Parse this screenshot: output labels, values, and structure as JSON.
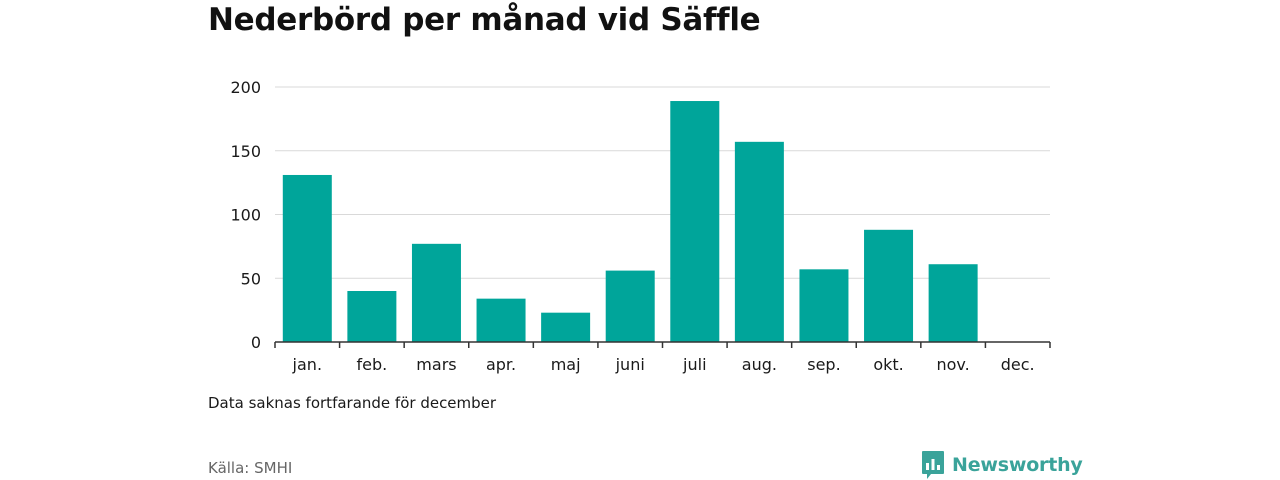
{
  "title": "Nederbörd per månad vid Säffle",
  "note": "Data saknas fortfarande för december",
  "source": "Källa: SMHI",
  "brand": {
    "name": "Newsworthy",
    "icon": "bar-chart-speech-icon",
    "color": "#3aa39a"
  },
  "chart_data": {
    "type": "bar",
    "title": "Nederbörd per månad vid Säffle",
    "xlabel": "",
    "ylabel": "",
    "categories": [
      "jan.",
      "feb.",
      "mars",
      "apr.",
      "maj",
      "juni",
      "juli",
      "aug.",
      "sep.",
      "okt.",
      "nov.",
      "dec."
    ],
    "values": [
      131,
      40,
      77,
      34,
      23,
      56,
      189,
      157,
      57,
      88,
      61,
      null
    ],
    "ylim": [
      0,
      200
    ],
    "yticks": [
      0,
      50,
      100,
      150,
      200
    ],
    "grid": true,
    "bar_color": "#00a59a"
  }
}
